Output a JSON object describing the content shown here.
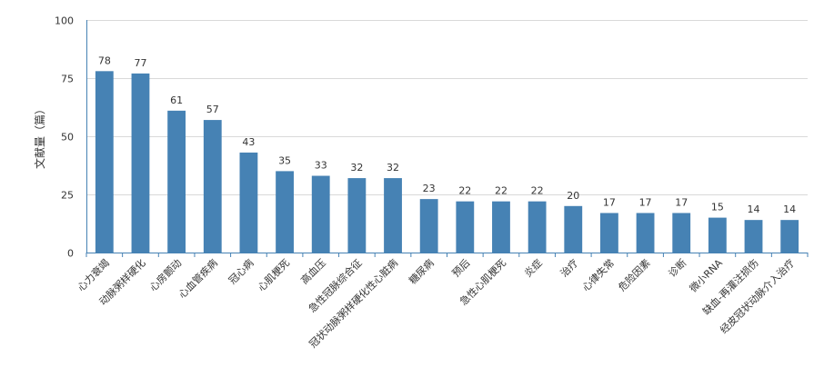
{
  "chart_data": {
    "type": "bar",
    "title": "",
    "xlabel": "",
    "ylabel": "文献量（篇）",
    "ylim": [
      0,
      100
    ],
    "yticks": [
      0,
      25,
      50,
      75,
      100
    ],
    "grid": true,
    "bar_color": "#4682b4",
    "axis_color": "#4682b4",
    "grid_color": "#d9d9d9",
    "categories": [
      "心力衰竭",
      "动脉粥样硬化",
      "心房颤动",
      "心血管疾病",
      "冠心病",
      "心肌梗死",
      "高血压",
      "急性冠脉综合征",
      "冠状动脉粥样硬化性心脏病",
      "糖尿病",
      "预后",
      "急性心肌梗死",
      "炎症",
      "治疗",
      "心律失常",
      "危险因素",
      "诊断",
      "微小RNA",
      "缺血-再灌注损伤",
      "经皮冠状动脉介入治疗"
    ],
    "values": [
      78,
      77,
      61,
      57,
      43,
      35,
      33,
      32,
      32,
      23,
      22,
      22,
      22,
      20,
      17,
      17,
      17,
      15,
      14,
      14
    ]
  }
}
